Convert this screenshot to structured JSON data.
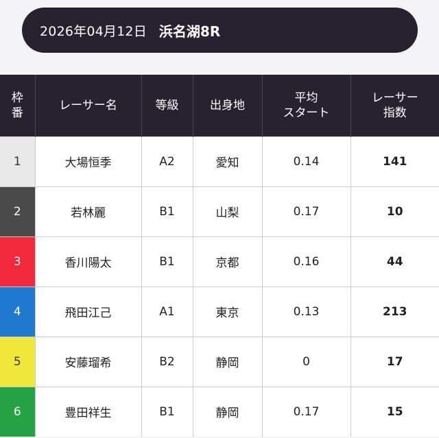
{
  "header": {
    "date": "2026年04月12日",
    "race": "浜名湖8R"
  },
  "table": {
    "columns": {
      "waku": [
        "枠",
        "番"
      ],
      "racer_name": "レーサー名",
      "grade": "等級",
      "birthplace": "出身地",
      "avg_start": [
        "平均",
        "スタート"
      ],
      "racer_index": [
        "レーサー",
        "指数"
      ]
    },
    "rows": [
      {
        "waku": "1",
        "name": "大場恒季",
        "grade": "A2",
        "birthplace": "愛知",
        "avg_start": "0.14",
        "index": "141",
        "color": "#e9e9e9",
        "text_color": "#333333"
      },
      {
        "waku": "2",
        "name": "若林麗",
        "grade": "B1",
        "birthplace": "山梨",
        "avg_start": "0.17",
        "index": "10",
        "color": "#4a4a4a",
        "text_color": "#ffffff"
      },
      {
        "waku": "3",
        "name": "香川陽太",
        "grade": "B1",
        "birthplace": "京都",
        "avg_start": "0.16",
        "index": "44",
        "color": "#f2283c",
        "text_color": "#ffffff"
      },
      {
        "waku": "4",
        "name": "飛田江己",
        "grade": "A1",
        "birthplace": "東京",
        "avg_start": "0.13",
        "index": "213",
        "color": "#1f79d0",
        "text_color": "#ffffff"
      },
      {
        "waku": "5",
        "name": "安藤瑠希",
        "grade": "B2",
        "birthplace": "静岡",
        "avg_start": "0",
        "index": "17",
        "color": "#efe83a",
        "text_color": "#333333"
      },
      {
        "waku": "6",
        "name": "豊田祥生",
        "grade": "B1",
        "birthplace": "静岡",
        "avg_start": "0.17",
        "index": "15",
        "color": "#25a244",
        "text_color": "#ffffff"
      }
    ]
  }
}
